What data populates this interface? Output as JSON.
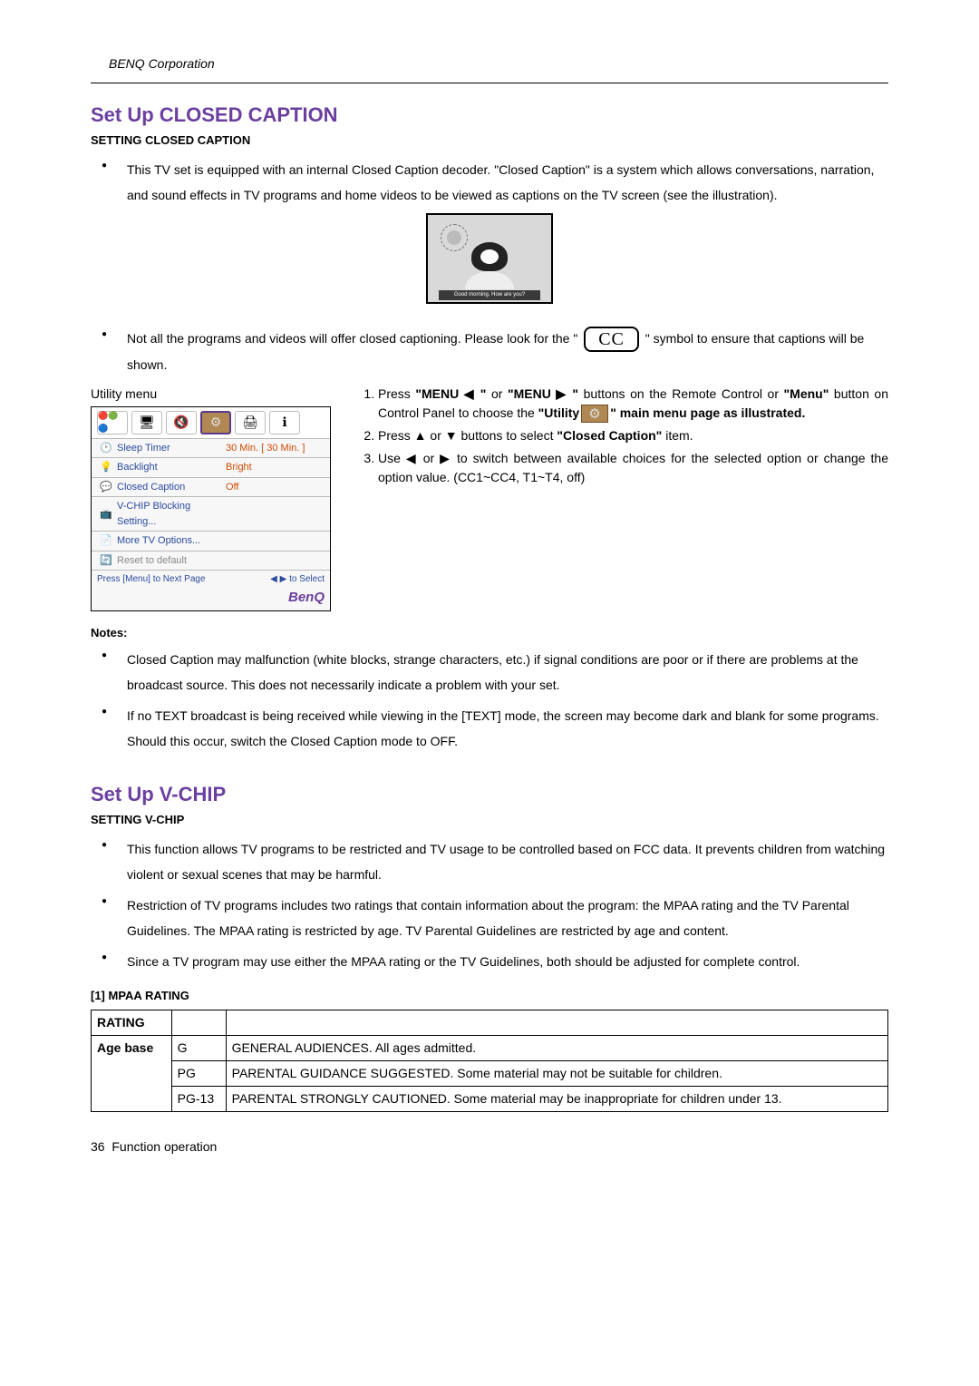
{
  "header": {
    "corp": "BENQ Corporation"
  },
  "section_cc": {
    "title": "Set Up CLOSED CAPTION",
    "subtitle": "SETTING CLOSED CAPTION",
    "bullets": [
      "This TV set is equipped with an internal Closed Caption decoder. \"Closed Caption\" is a system which allows conversations, narration, and sound effects in TV programs and home videos to be viewed as captions on the TV screen (see the illustration).",
      "Not all the programs and videos will offer closed captioning. Please look for the \" ",
      " \" symbol to ensure that captions will be shown."
    ],
    "cc_symbol": "CC",
    "illus_caption": "Good morning. How are you?"
  },
  "utility_menu": {
    "label": "Utility menu",
    "tabs_icons": [
      "🔴🟢🔵",
      "🖥",
      "🔇",
      "⚙",
      "🖨",
      "ℹ"
    ],
    "selected_tab": 3,
    "rows": [
      {
        "icon": "🕑",
        "label": "Sleep Timer",
        "value": "30  Min.  [  30  Min. ]",
        "valColor": "#d04a00"
      },
      {
        "icon": "💡",
        "label": "Backlight",
        "value": "Bright",
        "valColor": "#d04a00"
      },
      {
        "icon": "💬",
        "label": "Closed Caption",
        "value": "Off",
        "valColor": "#d04a00"
      },
      {
        "icon": "📺",
        "label": "V-CHIP Blocking Setting...",
        "value": ""
      },
      {
        "icon": "📄",
        "label": "More TV Options...",
        "value": ""
      },
      {
        "icon": "🔄",
        "label": "Reset to default",
        "value": "",
        "faded": true
      }
    ],
    "footer_left": "Press [Menu] to Next Page",
    "footer_right": "◀ ▶ to Select",
    "logo": "BenQ"
  },
  "steps": {
    "step1_a": "Press ",
    "step1_menu1": "\"MENU ◀ \"",
    "step1_or": " or ",
    "step1_menu2": "\"MENU ▶ \"",
    "step1_b": " buttons on the Remote Control or ",
    "step1_menu3": "\"Menu\"",
    "step1_c": " button on Control Panel to choose the ",
    "step1_utility": "\"Utility",
    "step1_d": "\" main menu page as illustrated.",
    "step2_a": "Press ▲ or ▼ buttons to select ",
    "step2_b": "\"Closed Caption\"",
    "step2_c": " item.",
    "step3": "Use ◀ or ▶ to switch between available choices for the selected option or change the option value. (CC1~CC4, T1~T4, off)"
  },
  "notes": {
    "heading": "Notes:",
    "items": [
      "Closed Caption may malfunction (white blocks, strange characters, etc.) if signal conditions are poor or if there are problems at the broadcast source. This does not necessarily indicate a problem with your set.",
      "If no TEXT broadcast is being received while viewing in the [TEXT] mode, the screen may become dark and blank for some programs. Should this occur, switch the Closed Caption mode to OFF."
    ]
  },
  "section_vchip": {
    "title": "Set Up V-CHIP",
    "subtitle": "SETTING V-CHIP",
    "bullets": [
      "This function allows TV programs to be restricted and TV usage to be controlled based on FCC data. It prevents children from watching violent or sexual scenes that may be harmful.",
      "Restriction of TV programs includes two ratings that contain information about the program: the MPAA rating and the TV Parental Guidelines. The MPAA rating is restricted by age. TV Parental Guidelines are restricted by age and content.",
      "Since a TV program may use either the MPAA rating or the TV Guidelines, both should be adjusted for complete control."
    ],
    "mpaa_heading": "[1] MPAA RATING",
    "table": {
      "rating": "RATING",
      "agebase": "Age base",
      "rows": [
        {
          "code": "G",
          "desc": "GENERAL AUDIENCES. All ages admitted."
        },
        {
          "code": "PG",
          "desc": "PARENTAL GUIDANCE SUGGESTED. Some material may not be suitable for children."
        },
        {
          "code": "PG-13",
          "desc": "PARENTAL STRONGLY CAUTIONED. Some material may be inappropriate for children under 13."
        }
      ]
    }
  },
  "footer": {
    "page": "36",
    "label": "Function operation"
  }
}
